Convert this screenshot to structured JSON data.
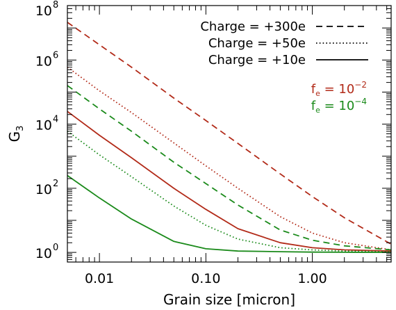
{
  "chart_data": {
    "type": "line",
    "xlabel": "Grain size [micron]",
    "ylabel": "G",
    "ylabel_sub": "3",
    "x_scale": "log",
    "y_scale": "log",
    "xlim": [
      0.005,
      5.5
    ],
    "ylim": [
      0.5,
      50000000
    ],
    "x_ticks": [
      {
        "value": 0.01,
        "label": "0.01"
      },
      {
        "value": 0.1,
        "label": "0.10"
      },
      {
        "value": 1.0,
        "label": "1.00"
      }
    ],
    "y_ticks": [
      {
        "value": 1,
        "base": "10",
        "exp": "0"
      },
      {
        "value": 100,
        "base": "10",
        "exp": "2"
      },
      {
        "value": 10000,
        "base": "10",
        "exp": "4"
      },
      {
        "value": 1000000,
        "base": "10",
        "exp": "6"
      },
      {
        "value": 100000000,
        "base": "10",
        "exp": "8"
      }
    ],
    "legend_linestyles": [
      {
        "label": "Charge = +300e",
        "dash": "dashed"
      },
      {
        "label": "Charge = +50e",
        "dash": "dotted"
      },
      {
        "label": "Charge = +10e",
        "dash": "solid"
      }
    ],
    "legend_colors": [
      {
        "label": "f",
        "sub": "e",
        "eq": " = 10",
        "sup": "−2",
        "color": "#b22a18"
      },
      {
        "label": "f",
        "sub": "e",
        "eq": " = 10",
        "sup": "−4",
        "color": "#1a8a1a"
      }
    ],
    "series": [
      {
        "charge": 300,
        "fe": "1e-2",
        "color": "#b22a18",
        "dash": "dashed",
        "x": [
          0.005,
          0.01,
          0.02,
          0.05,
          0.1,
          0.2,
          0.5,
          1.0,
          2.0,
          5.5
        ],
        "y": [
          15000000,
          3000000,
          600000,
          65000,
          13000,
          2500,
          280,
          55,
          12,
          1.8
        ]
      },
      {
        "charge": 50,
        "fe": "1e-2",
        "color": "#b22a18",
        "dash": "dotted",
        "x": [
          0.005,
          0.01,
          0.02,
          0.05,
          0.1,
          0.2,
          0.5,
          1.0,
          2.0,
          5.5
        ],
        "y": [
          600000,
          110000,
          23000,
          2600,
          500,
          100,
          13,
          4,
          2,
          1.2
        ]
      },
      {
        "charge": 10,
        "fe": "1e-2",
        "color": "#b22a18",
        "dash": "solid",
        "x": [
          0.005,
          0.01,
          0.02,
          0.05,
          0.1,
          0.2,
          0.5,
          1.0,
          2.0,
          5.5
        ],
        "y": [
          25000,
          4500,
          900,
          100,
          22,
          5.5,
          2,
          1.4,
          1.2,
          1.1
        ]
      },
      {
        "charge": 300,
        "fe": "1e-4",
        "color": "#1a8a1a",
        "dash": "dashed",
        "x": [
          0.005,
          0.01,
          0.02,
          0.05,
          0.1,
          0.2,
          0.5,
          1.0,
          2.0,
          5.5
        ],
        "y": [
          160000,
          30000,
          6000,
          650,
          140,
          30,
          5,
          2.4,
          1.6,
          1.2
        ]
      },
      {
        "charge": 50,
        "fe": "1e-4",
        "color": "#1a8a1a",
        "dash": "dotted",
        "x": [
          0.005,
          0.01,
          0.02,
          0.05,
          0.1,
          0.2,
          0.5,
          1.0,
          2.0,
          5.5
        ],
        "y": [
          6000,
          1100,
          230,
          28,
          7,
          2.6,
          1.4,
          1.2,
          1.1,
          1.05
        ]
      },
      {
        "charge": 10,
        "fe": "1e-4",
        "color": "#1a8a1a",
        "dash": "solid",
        "x": [
          0.005,
          0.01,
          0.02,
          0.05,
          0.1,
          0.2,
          0.5,
          1.0,
          2.0,
          5.5
        ],
        "y": [
          250,
          50,
          11,
          2.2,
          1.3,
          1.1,
          1.05,
          1.02,
          1.01,
          1.0
        ]
      }
    ]
  }
}
